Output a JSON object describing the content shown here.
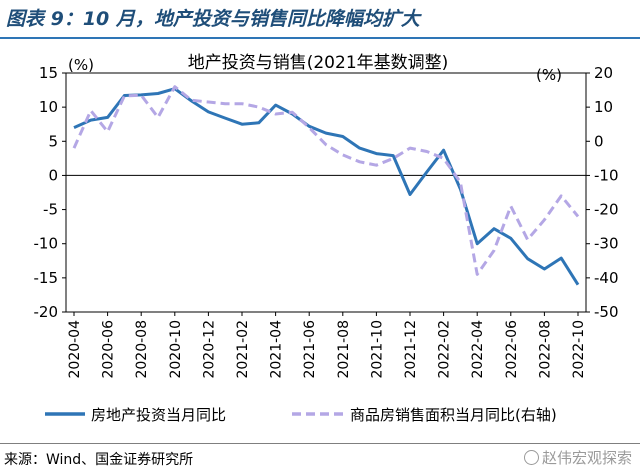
{
  "figure_title": "图表 9：10 月，地产投资与销售同比降幅均扩大",
  "source": "来源：Wind、国金证券研究所",
  "watermark": "赵伟宏观探索",
  "colors": {
    "title": "#1f4e79",
    "series_investment": "#2e75b6",
    "series_sales": "#b4a7e5"
  },
  "chart_data": {
    "type": "line",
    "title": "地产投资与销售(2021年基数调整)",
    "y_left_unit": "(%)",
    "y_right_unit": "(%)",
    "y_left_range": [
      -20,
      15
    ],
    "y_left_ticks": [
      15,
      10,
      5,
      0,
      -5,
      -10,
      -15,
      -20
    ],
    "y_right_range": [
      -50,
      20
    ],
    "y_right_ticks": [
      20,
      10,
      0,
      -10,
      -20,
      -30,
      -40,
      -50
    ],
    "x_tick_labels": [
      "2020-04",
      "2020-06",
      "2020-08",
      "2020-10",
      "2020-12",
      "2021-02",
      "2021-04",
      "2021-06",
      "2021-08",
      "2021-10",
      "2021-12",
      "2022-02",
      "2022-04",
      "2022-06",
      "2022-08",
      "2022-10"
    ],
    "x": [
      "2020-04",
      "2020-05",
      "2020-06",
      "2020-07",
      "2020-08",
      "2020-09",
      "2020-10",
      "2020-11",
      "2020-12",
      "2021-01",
      "2021-02",
      "2021-03",
      "2021-04",
      "2021-05",
      "2021-06",
      "2021-07",
      "2021-08",
      "2021-09",
      "2021-10",
      "2021-11",
      "2021-12",
      "2022-01",
      "2022-02",
      "2022-03",
      "2022-04",
      "2022-05",
      "2022-06",
      "2022-07",
      "2022-08",
      "2022-09",
      "2022-10"
    ],
    "legend_position": "bottom",
    "series": [
      {
        "name": "房地产投资当月同比",
        "axis": "left",
        "style": "solid",
        "values": [
          7.0,
          8.1,
          8.5,
          11.7,
          11.8,
          12.0,
          12.7,
          10.9,
          9.3,
          8.4,
          7.5,
          7.7,
          10.3,
          9.0,
          7.2,
          6.2,
          5.7,
          4.0,
          3.2,
          2.9,
          -2.8,
          0.5,
          3.7,
          -2.0,
          -10.0,
          -7.8,
          -9.2,
          -12.2,
          -13.7,
          -12.1,
          -16.0
        ]
      },
      {
        "name": "商品房销售面积当月同比(右轴)",
        "axis": "right",
        "style": "dashed",
        "values": [
          -2.0,
          9.0,
          2.8,
          13.3,
          13.5,
          7.0,
          16.0,
          12.0,
          11.5,
          11.0,
          11.0,
          10.0,
          8.0,
          8.5,
          4.0,
          -1.0,
          -4.0,
          -6.0,
          -7.0,
          -5.0,
          -2.0,
          -3.0,
          -5.0,
          -12.0,
          -39.0,
          -32.0,
          -19.0,
          -28.8,
          -23.0,
          -16.0,
          -22.0
        ]
      }
    ]
  }
}
